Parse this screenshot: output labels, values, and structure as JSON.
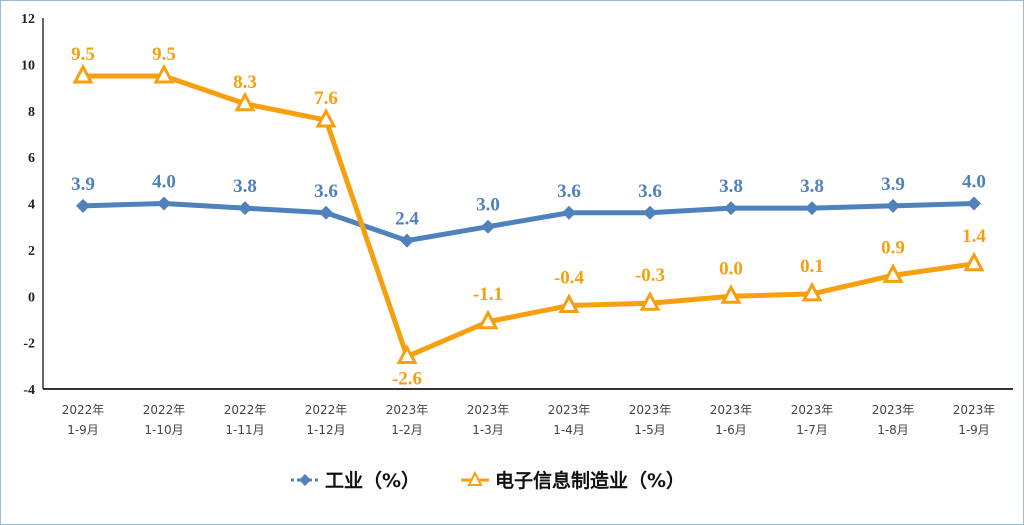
{
  "chart_data": {
    "type": "line",
    "categories": [
      [
        "2022年",
        "1-9月"
      ],
      [
        "2022年",
        "1-10月"
      ],
      [
        "2022年",
        "1-11月"
      ],
      [
        "2022年",
        "1-12月"
      ],
      [
        "2023年",
        "1-2月"
      ],
      [
        "2023年",
        "1-3月"
      ],
      [
        "2023年",
        "1-4月"
      ],
      [
        "2023年",
        "1-5月"
      ],
      [
        "2023年",
        "1-6月"
      ],
      [
        "2023年",
        "1-7月"
      ],
      [
        "2023年",
        "1-8月"
      ],
      [
        "2023年",
        "1-9月"
      ]
    ],
    "ylim": [
      -4,
      12
    ],
    "yticks": [
      -4,
      -2,
      0,
      2,
      4,
      6,
      8,
      10,
      12
    ],
    "grid": false,
    "legend": "bottom",
    "series": [
      {
        "name": "工业（%）",
        "color": "#4f81bd",
        "marker": "diamond",
        "values": [
          3.9,
          4.0,
          3.8,
          3.6,
          2.4,
          3.0,
          3.6,
          3.6,
          3.8,
          3.8,
          3.9,
          4.0
        ],
        "labels": [
          "3.9",
          "4.0",
          "3.8",
          "3.6",
          "2.4",
          "3.0",
          "3.6",
          "3.6",
          "3.8",
          "3.8",
          "3.9",
          "4.0"
        ]
      },
      {
        "name": "电子信息制造业（%）",
        "color": "#f79f0f",
        "marker": "triangle",
        "values": [
          9.5,
          9.5,
          8.3,
          7.6,
          -2.6,
          -1.1,
          -0.4,
          -0.3,
          0.0,
          0.1,
          0.9,
          1.4
        ],
        "labels": [
          "9.5",
          "9.5",
          "8.3",
          "7.6",
          "-2.6",
          "-1.1",
          "-0.4",
          "-0.3",
          "0.0",
          "0.1",
          "0.9",
          "1.4"
        ]
      }
    ]
  }
}
